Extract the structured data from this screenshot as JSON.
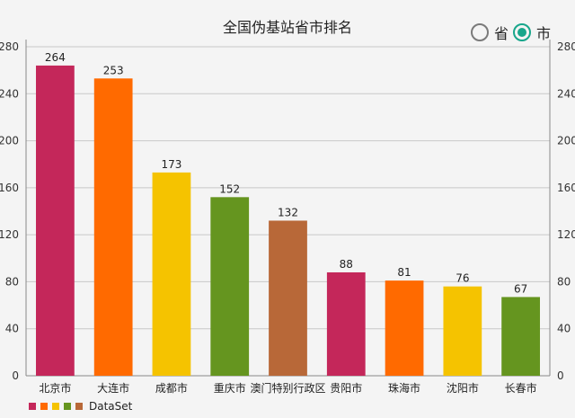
{
  "chart_data": {
    "type": "bar",
    "title": "全国伪基站省市排名",
    "categories": [
      "北京市",
      "大连市",
      "成都市",
      "重庆市",
      "澳门特别行政区",
      "贵阳市",
      "珠海市",
      "沈阳市",
      "长春市"
    ],
    "values": [
      264,
      253,
      173,
      152,
      132,
      88,
      81,
      76,
      67
    ],
    "colors": [
      "#c4275a",
      "#ff6a00",
      "#f5c300",
      "#65951f",
      "#b86838",
      "#c4275a",
      "#ff6a00",
      "#f5c300",
      "#65951f"
    ],
    "ylim": [
      0,
      280
    ],
    "yticks": [
      0,
      40,
      80,
      120,
      160,
      200,
      240,
      280
    ],
    "grid": true,
    "legend": {
      "position": "bottom-left",
      "label": "DataSet",
      "swatches": [
        "#c4275a",
        "#ff6a00",
        "#f5c300",
        "#65951f",
        "#b86838"
      ]
    }
  },
  "toggles": {
    "province_label": "省",
    "city_label": "市",
    "selected": "市"
  },
  "colors": {
    "radio_checked": "#18a68b",
    "background": "#f4f4f4"
  }
}
